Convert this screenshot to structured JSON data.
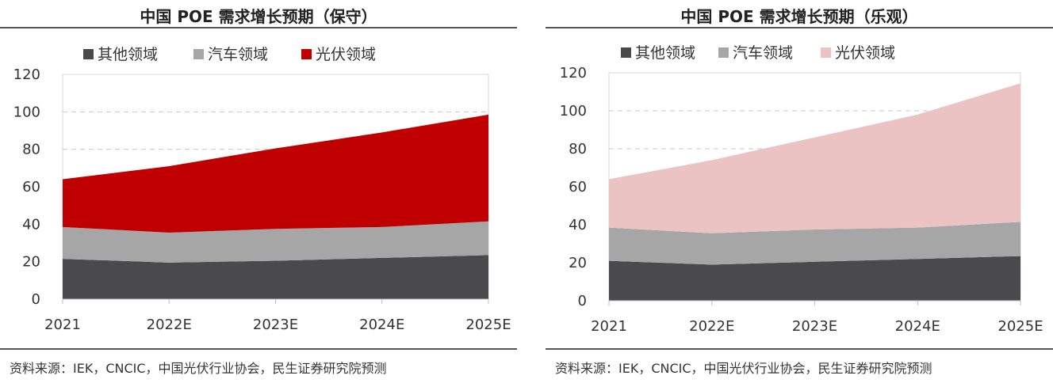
{
  "charts": [
    {
      "title": "中国 POE 需求增长预期（保守）",
      "source": "资料来源：IEK，CNCIC，中国光伏行业协会，民生证券研究院预测"
    },
    {
      "title": "中国 POE 需求增长预期（乐观）",
      "source": "资料来源：IEK，CNCIC，中国光伏行业协会，民生证券研究院预测"
    }
  ],
  "chart_data": [
    {
      "type": "area",
      "stacked": true,
      "title": "中国 POE 需求增长预期（保守）",
      "categories": [
        "2021",
        "2022E",
        "2023E",
        "2024E",
        "2025E"
      ],
      "ylim": [
        0,
        120
      ],
      "yticks": [
        "0",
        "20",
        "40",
        "60",
        "80",
        "100",
        "120"
      ],
      "grid": true,
      "legend_position": "top",
      "series": [
        {
          "name": "其他领域",
          "color": "#4a4a4c",
          "values": [
            21.5,
            19.5,
            20.5,
            22,
            23.5
          ]
        },
        {
          "name": "汽车领域",
          "color": "#a6a6a6",
          "values": [
            17,
            16,
            17,
            16.5,
            18
          ]
        },
        {
          "name": "光伏领域",
          "color": "#c00000",
          "values": [
            25.5,
            35.5,
            43,
            50.5,
            57
          ]
        }
      ]
    },
    {
      "type": "area",
      "stacked": true,
      "title": "中国 POE 需求增长预期（乐观）",
      "categories": [
        "2021",
        "2022E",
        "2023E",
        "2024E",
        "2025E"
      ],
      "ylim": [
        0,
        120
      ],
      "yticks": [
        "0",
        "20",
        "40",
        "60",
        "80",
        "100",
        "120"
      ],
      "grid": true,
      "legend_position": "top",
      "series": [
        {
          "name": "其他领域",
          "color": "#4a4a4c",
          "values": [
            21,
            19,
            20.5,
            22,
            23.5
          ]
        },
        {
          "name": "汽车领域",
          "color": "#a6a6a6",
          "values": [
            17.5,
            16.5,
            17,
            16.5,
            18
          ]
        },
        {
          "name": "光伏领域",
          "color": "#ecc3c3",
          "values": [
            25.5,
            38.5,
            48.5,
            59.5,
            73
          ]
        }
      ]
    }
  ]
}
